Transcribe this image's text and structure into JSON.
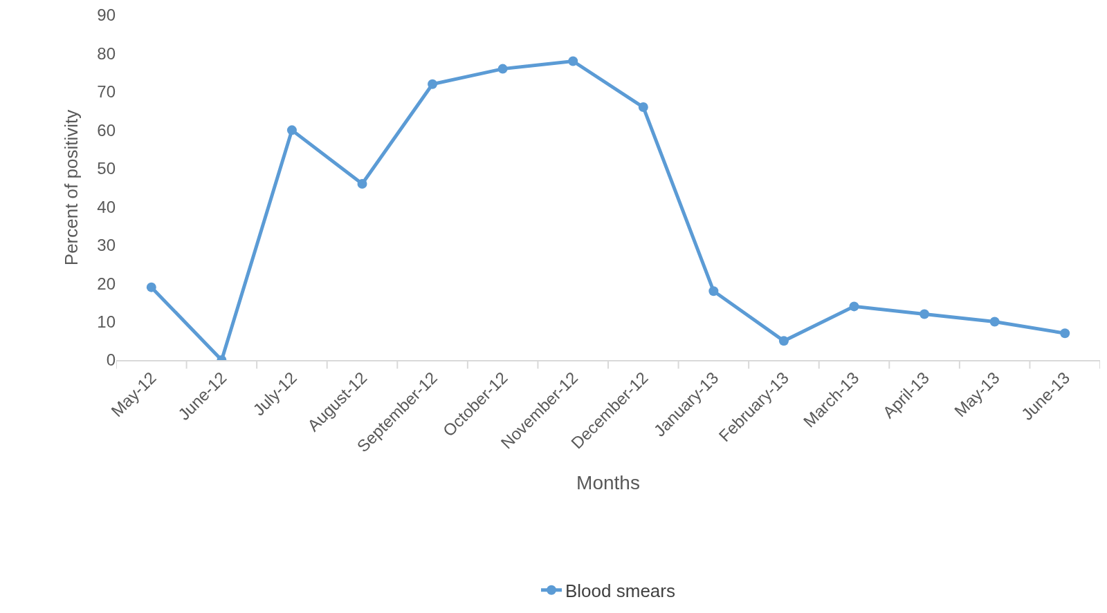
{
  "chart_data": {
    "type": "line",
    "xlabel": "Months",
    "ylabel": "Percent of positivity",
    "categories": [
      "May-12",
      "June-12",
      "July-12",
      "August-12",
      "September-12",
      "October-12",
      "November-12",
      "December-12",
      "January-13",
      "February-13",
      "March-13",
      "April-13",
      "May-13",
      "June-13"
    ],
    "series": [
      {
        "name": "Blood smears",
        "color": "#5b9bd5",
        "values": [
          19,
          0,
          60,
          46,
          72,
          76,
          78,
          66,
          18,
          5,
          14,
          12,
          10,
          7
        ]
      }
    ],
    "ylim": [
      0,
      90
    ],
    "yticks": [
      0,
      10,
      20,
      30,
      40,
      50,
      60,
      70,
      80,
      90
    ],
    "grid": false,
    "legend": "bottom",
    "marker": "circle",
    "line_style": "solid"
  }
}
